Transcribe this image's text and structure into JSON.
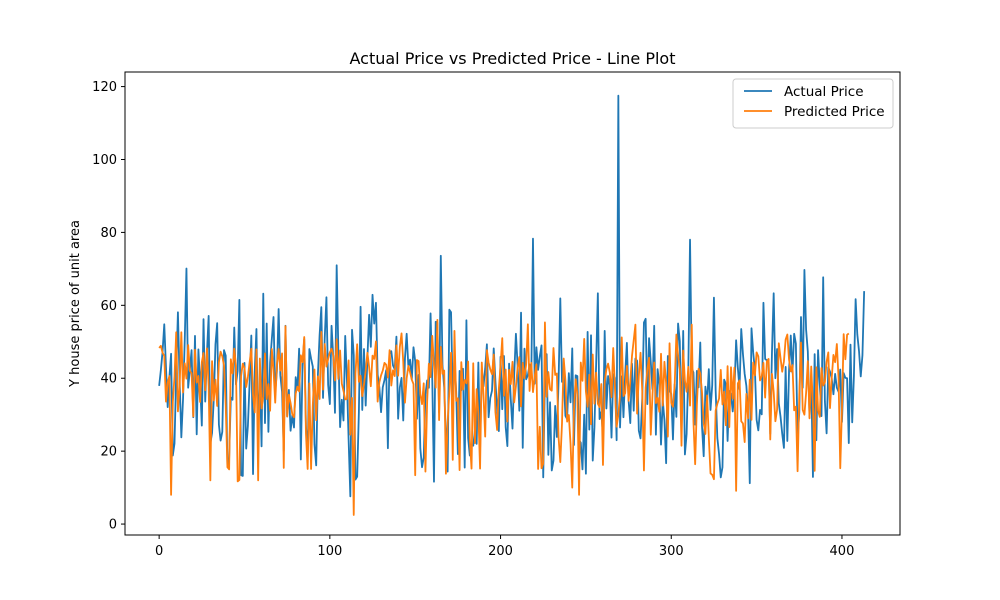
{
  "chart_data": {
    "type": "line",
    "title": "Actual Price vs Predicted Price - Line Plot",
    "xlabel": "",
    "ylabel": "Y house price of unit area",
    "xlim": [
      -20,
      434
    ],
    "ylim": [
      -3,
      124
    ],
    "x_ticks": [
      0,
      100,
      200,
      300,
      400
    ],
    "x_tick_labels": [
      "0",
      "100",
      "200",
      "300",
      "400"
    ],
    "y_ticks": [
      0,
      20,
      40,
      60,
      80,
      100,
      120
    ],
    "y_tick_labels": [
      "0",
      "20",
      "40",
      "60",
      "80",
      "100",
      "120"
    ],
    "grid": false,
    "legend_position": "top-right",
    "series": [
      {
        "name": "Actual Price",
        "color": "#1f77b4",
        "x_start": 0,
        "x_step": 1,
        "values": [
          37.9,
          42.2,
          47.3,
          54.8,
          43.1,
          32.1,
          40.3,
          46.7,
          18.8,
          22.1,
          41.4,
          58.1,
          39.3,
          23.8,
          34.3,
          50.5,
          70.1,
          37.4,
          42.3,
          47.7,
          29.3,
          51.6,
          24.6,
          47.9,
          38.8,
          27.0,
          56.2,
          33.6,
          47.0,
          57.1,
          22.1,
          25.0,
          34.2,
          49.3,
          55.1,
          27.3,
          22.9,
          25.3,
          47.7,
          46.2,
          15.9,
          18.2,
          34.7,
          34.1,
          53.9,
          38.3,
          42.0,
          61.5,
          13.4,
          13.2,
          44.2,
          20.7,
          27.0,
          38.9,
          51.7,
          13.7,
          41.9,
          53.5,
          22.6,
          42.4,
          21.3,
          63.2,
          27.7,
          55.0,
          25.3,
          44.3,
          50.7,
          56.8,
          36.2,
          42.0,
          59.0,
          40.8,
          36.3,
          20.0,
          54.4,
          29.5,
          36.8,
          25.6,
          29.8,
          26.5,
          40.3,
          36.8,
          48.1,
          17.7,
          43.7,
          50.8,
          27.0,
          18.3,
          48.0,
          45.4,
          43.2,
          21.8,
          16.1,
          41.0,
          51.8,
          59.5,
          34.6,
          51.0,
          62.2,
          38.2,
          32.9,
          54.4,
          45.7,
          30.5,
          71.0,
          47.1,
          26.6,
          34.1,
          28.4,
          51.6,
          39.4,
          23.1,
          7.6,
          53.3,
          46.4,
          12.2,
          13.0,
          30.6,
          59.6,
          31.3,
          48.0,
          32.5,
          45.5,
          57.4,
          48.6,
          62.9,
          55.0,
          60.7,
          41.0,
          37.5,
          30.7,
          37.5,
          39.5,
          42.2,
          20.8,
          46.8,
          47.4,
          43.5,
          42.5,
          51.4,
          28.9,
          37.5,
          40.1,
          28.4,
          45.5,
          52.2,
          43.2,
          45.1,
          39.7,
          48.5,
          44.7,
          28.9,
          40.9,
          20.7,
          15.6,
          18.3,
          35.6,
          39.4,
          37.4,
          57.8,
          39.6,
          11.6,
          55.5,
          55.2,
          30.6,
          73.6,
          43.4,
          37.4,
          23.5,
          14.4,
          58.8,
          58.1,
          35.1,
          45.2,
          36.5,
          19.2,
          42.0,
          36.7,
          42.6,
          15.5,
          55.9,
          23.6,
          18.8,
          21.8,
          21.5,
          25.7,
          22.0,
          44.3,
          20.5,
          42.3,
          37.8,
          42.7,
          49.3,
          29.3,
          34.6,
          36.6,
          48.2,
          39.1,
          31.6,
          25.5,
          45.9,
          31.5,
          46.1,
          26.6,
          21.4,
          44.0,
          34.2,
          26.2,
          40.9,
          52.2,
          43.5,
          31.1,
          58.0,
          20.9,
          48.1,
          39.7,
          40.8,
          43.8,
          40.2,
          78.3,
          38.5,
          48.5,
          42.3,
          46.0,
          49.0,
          12.8,
          40.2,
          46.6,
          19.0,
          33.4,
          14.7,
          17.4,
          32.4,
          23.9,
          39.3,
          61.9,
          39.0,
          40.6,
          29.7,
          28.8,
          41.4,
          33.4,
          48.2,
          21.7,
          40.8,
          40.6,
          23.1,
          22.3,
          15.0,
          30.0,
          13.8,
          52.7,
          25.9,
          51.8,
          17.4,
          26.5,
          43.9,
          63.3,
          28.8,
          30.7,
          24.4,
          53.0,
          31.7,
          40.6,
          38.1,
          23.7,
          41.1,
          40.1,
          23.0,
          117.5,
          26.5,
          40.5,
          29.3,
          41.0,
          49.7,
          34.0,
          27.7,
          44.0,
          31.1,
          45.4,
          44.8,
          25.6,
          23.5,
          34.4,
          55.3,
          56.3,
          32.9,
          51.0,
          44.5,
          37.0,
          54.4,
          24.5,
          42.5,
          38.1,
          21.8,
          34.1,
          28.5,
          16.7,
          46.1,
          36.9,
          35.7,
          23.2,
          38.4,
          29.4,
          55.0,
          50.2,
          24.7,
          53.0,
          19.1,
          24.7,
          42.2,
          78.0,
          42.8,
          41.6,
          27.3,
          42.0,
          37.5,
          49.8,
          26.9,
          18.6,
          37.7,
          33.1,
          42.5,
          31.3,
          38.1,
          62.1,
          36.7,
          23.6,
          19.2,
          12.8,
          15.6,
          39.6,
          38.4,
          22.8,
          36.5,
          35.6,
          30.9,
          36.3,
          50.4,
          42.9,
          37.0,
          53.5,
          46.6,
          41.2,
          37.9,
          30.8,
          11.2,
          53.7,
          47.0,
          42.3,
          28.6,
          25.7,
          31.3,
          30.1,
          60.7,
          45.3,
          44.9,
          45.1,
          24.7,
          47.1,
          63.3,
          40.0,
          48.0,
          33.1,
          29.5,
          24.8,
          20.9,
          43.1,
          22.8,
          42.1,
          51.7,
          41.5,
          52.2,
          49.5,
          23.8,
          30.5,
          56.8,
          37.4,
          69.7,
          53.3,
          47.3,
          29.3,
          40.3,
          12.9,
          46.6,
          23.0,
          47.7,
          38.3,
          29.6,
          67.7,
          33.7,
          24.9,
          43.0,
          41.8,
          40.0,
          35.6,
          41.2,
          37.4,
          36.3,
          42.4,
          28.0,
          41.4,
          40.1,
          40.0,
          22.2,
          49.2,
          27.9,
          40.6,
          61.7,
          52.0,
          47.4,
          40.5,
          46.3,
          63.9
        ]
      },
      {
        "name": "Predicted Price",
        "color": "#ff7f0e",
        "x_start": 0,
        "x_step": 1,
        "values": [
          48.3,
          48.9,
          47.0,
          46.1,
          33.6,
          38.8,
          40.6,
          8.0,
          33.5,
          40.4,
          52.6,
          30.9,
          37.8,
          52.6,
          36.1,
          44.1,
          39.9,
          49.1,
          42.0,
          41.4,
          29.5,
          47.8,
          38.8,
          40.6,
          33.5,
          44.4,
          46.9,
          36.7,
          48.2,
          37.8,
          12.0,
          44.7,
          33.9,
          39.6,
          32.4,
          44.4,
          47.3,
          46.0,
          43.5,
          32.5,
          15.6,
          15.0,
          45.2,
          41.3,
          48.1,
          43.4,
          11.7,
          12.1,
          40.6,
          44.0,
          42.8,
          37.6,
          40.4,
          44.4,
          48.1,
          35.5,
          30.6,
          47.9,
          12.0,
          45.4,
          31.7,
          35.0,
          46.8,
          34.3,
          38.4,
          31.1,
          48.0,
          42.3,
          33.3,
          43.8,
          48.0,
          42.1,
          46.8,
          15.4,
          54.3,
          29.5,
          35.5,
          33.2,
          30.1,
          29.3,
          35.8,
          37.7,
          36.4,
          46.3,
          44.4,
          51.3,
          24.8,
          15.1,
          38.6,
          15.1,
          32.5,
          42.4,
          28.5,
          40.5,
          34.3,
          52.7,
          36.9,
          49.4,
          43.2,
          45.3,
          47.1,
          48.1,
          46.3,
          39.4,
          50.7,
          39.8,
          47.6,
          38.5,
          36.5,
          34.2,
          34.3,
          44.9,
          24.5,
          34.6,
          2.5,
          41.3,
          49.3,
          39.0,
          40.7,
          35.1,
          38.3,
          42.1,
          47.0,
          43.1,
          37.8,
          46.2,
          45.3,
          50.1,
          33.6,
          38.9,
          40.8,
          42.1,
          44.2,
          43.7,
          40.2,
          47.7,
          38.0,
          42.2,
          40.6,
          49.0,
          40.7,
          48.6,
          52.3,
          44.5,
          33.3,
          40.0,
          43.4,
          41.6,
          39.6,
          38.4,
          13.4,
          45.0,
          44.7,
          35.6,
          32.9,
          38.6,
          14.4,
          33.6,
          44.0,
          40.3,
          51.6,
          43.6,
          37.4,
          56.0,
          28.5,
          48.6,
          41.2,
          42.1,
          13.8,
          27.8,
          36.3,
          47.0,
          17.6,
          53.0,
          33.8,
          34.5,
          14.8,
          44.4,
          36.9,
          39.5,
          38.6,
          44.6,
          23.2,
          15.2,
          44.1,
          22.2,
          37.0,
          30.3,
          15.2,
          44.3,
          35.4,
          24.0,
          47.7,
          44.3,
          42.4,
          41.1,
          46.5,
          30.7,
          25.8,
          37.1,
          43.5,
          51.0,
          35.2,
          42.4,
          28.1,
          42.3,
          38.4,
          44.5,
          33.4,
          37.8,
          42.9,
          45.8,
          32.3,
          44.2,
          40.0,
          43.8,
          54.8,
          36.5,
          44.2,
          36.2,
          40.5,
          43.8,
          15.1,
          26.7,
          15.3,
          16.6,
          55.3,
          34.9,
          41.7,
          37.0,
          36.6,
          48.3,
          40.9,
          41.3,
          23.7,
          17.0,
          27.6,
          45.4,
          39.4,
          28.1,
          29.9,
          22.0,
          10.0,
          31.2,
          39.7,
          35.6,
          8.0,
          44.3,
          39.3,
          50.8,
          36.4,
          32.2,
          41.0,
          27.4,
          46.5,
          33.0,
          41.5,
          33.0,
          32.1,
          38.4,
          16.2,
          39.1,
          42.4,
          44.0,
          41.6,
          34.8,
          48.3,
          37.6,
          26.7,
          30.0,
          35.5,
          51.2,
          35.1,
          35.9,
          43.4,
          33.8,
          39.2,
          46.1,
          50.4,
          54.7,
          30.3,
          40.6,
          47.0,
          36.6,
          14.7,
          37.4,
          42.5,
          45.6,
          24.5,
          35.4,
          44.3,
          33.2,
          34.6,
          30.8,
          46.7,
          32.5,
          44.5,
          38.6,
          24.0,
          49.6,
          33.2,
          32.2,
          38.1,
          52.0,
          46.3,
          42.5,
          21.5,
          47.6,
          39.3,
          36.3,
          43.1,
          32.5,
          54.7,
          28.1,
          16.4,
          32.6,
          42.6,
          41.3,
          36.3,
          27.7,
          24.7,
          35.3,
          23.7,
          13.9,
          13.5,
          12.3,
          31.1,
          33.0,
          34.4,
          42.3,
          32.8,
          36.3,
          27.1,
          43.3,
          26.6,
          43.0,
          34.4,
          42.9,
          9.1,
          38.6,
          39.4,
          28.2,
          27.6,
          22.5,
          35.7,
          29.0,
          39.6,
          28.6,
          44.3,
          40.8,
          47.1,
          46.0,
          39.4,
          40.5,
          44.2,
          34.7,
          44.6,
          45.3,
          23.2,
          41.2,
          36.2,
          28.2,
          31.4,
          49.6,
          45.6,
          41.8,
          44.6,
          50.6,
          52.0,
          45.1,
          41.9,
          43.6,
          31.2,
          32.2,
          14.5,
          35.3,
          49.8,
          31.3,
          30.0,
          36.0,
          44.7,
          29.0,
          43.2,
          32.3,
          14.6,
          43.0,
          31.1,
          29.4,
          42.8,
          38.0,
          38.9,
          44.5,
          47.1,
          31.8,
          40.1,
          46.4,
          44.4,
          49.4,
          40.0,
          15.3,
          31.6,
          52.1,
          45.2,
          51.9,
          52.3
        ]
      }
    ]
  }
}
